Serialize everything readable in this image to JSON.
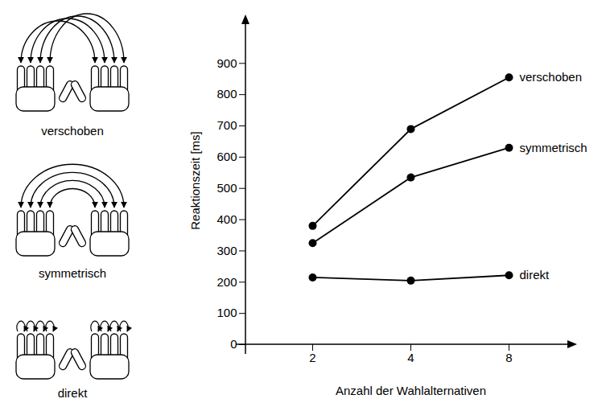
{
  "chart_data": {
    "type": "line",
    "x_label": "Anzahl der Wahlalternativen",
    "y_label": "Reaktionszeit [ms]",
    "categories": [
      "2",
      "4",
      "8"
    ],
    "series": [
      {
        "name": "verschoben",
        "color": "#000000",
        "marker": "circle",
        "values": [
          380,
          690,
          855
        ]
      },
      {
        "name": "symmetrisch",
        "color": "#000000",
        "marker": "circle",
        "values": [
          325,
          535,
          630
        ]
      },
      {
        "name": "direkt",
        "color": "#000000",
        "marker": "circle",
        "values": [
          215,
          205,
          222
        ]
      }
    ],
    "ylim": [
      0,
      1050
    ],
    "yticks": [
      0,
      100,
      200,
      300,
      400,
      500,
      600,
      700,
      800,
      900
    ],
    "grid": false
  }
}
